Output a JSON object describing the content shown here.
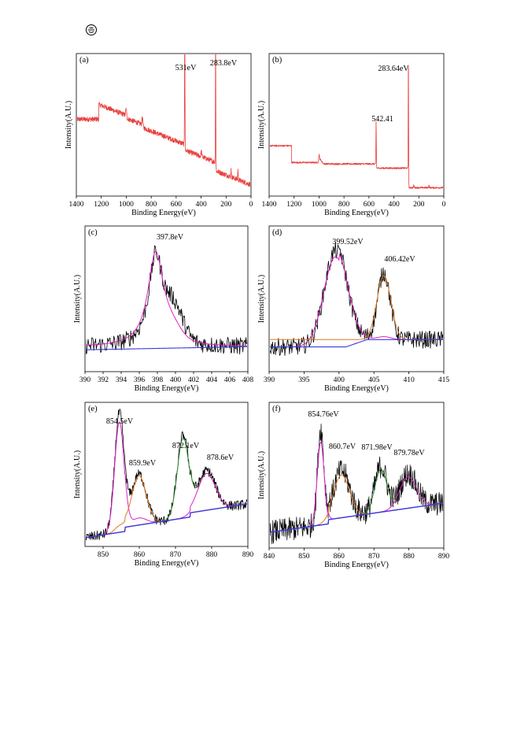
{
  "header": {
    "logo_icon": "circled-logo-icon"
  },
  "colors": {
    "raw_signal": "#000000",
    "survey_signal": "#e8403e",
    "fit_magenta": "#e020c8",
    "fit_orange": "#e07820",
    "fit_green": "#2a8a2a",
    "background_blue": "#3a3ad8"
  },
  "chart_data": [
    {
      "panel": "(a)",
      "type": "line",
      "xlabel": "Binding Energy(eV)",
      "ylabel": "Intensity(A.U.)",
      "xlim": [
        1400,
        0
      ],
      "x_reversed": true,
      "xticks": [
        1400,
        1200,
        1000,
        800,
        600,
        400,
        200,
        0
      ],
      "series": [
        {
          "style": "survey"
        }
      ],
      "peaks": [
        {
          "x": 531,
          "label": "531eV"
        },
        {
          "x": 283.8,
          "label": "283.8eV"
        }
      ],
      "step_edges": [
        1220,
        1000,
        870,
        531,
        283.8
      ]
    },
    {
      "panel": "(b)",
      "type": "line",
      "xlabel": "Binding Energy(eV)",
      "ylabel": "Intensity(A.U.)",
      "xlim": [
        1400,
        0
      ],
      "x_reversed": true,
      "xticks": [
        1400,
        1200,
        1000,
        800,
        600,
        400,
        200,
        0
      ],
      "series": [
        {
          "style": "survey"
        }
      ],
      "peaks": [
        {
          "x": 542.41,
          "label": "542.41"
        },
        {
          "x": 283.64,
          "label": "283.64eV"
        }
      ],
      "step_edges": [
        1220,
        1000,
        542.41,
        283.64
      ]
    },
    {
      "panel": "(c)",
      "type": "line",
      "xlabel": "Binding Energy(eV)",
      "ylabel": "Intensity(A.U.)",
      "xlim": [
        390,
        408
      ],
      "xticks": [
        390,
        392,
        394,
        396,
        398,
        400,
        402,
        404,
        406,
        408
      ],
      "series": [
        {
          "style": "raw"
        },
        {
          "style": "fit"
        },
        {
          "style": "background"
        }
      ],
      "peaks": [
        {
          "x": 397.8,
          "label": "397.8eV"
        }
      ]
    },
    {
      "panel": "(d)",
      "type": "line",
      "xlabel": "Binding Energy(eV)",
      "ylabel": "Intensity(A.U.)",
      "xlim": [
        390,
        415
      ],
      "xticks": [
        390,
        395,
        400,
        405,
        410,
        415
      ],
      "series": [
        {
          "style": "raw"
        },
        {
          "style": "fit"
        },
        {
          "style": "fit"
        },
        {
          "style": "background"
        }
      ],
      "peaks": [
        {
          "x": 399.52,
          "label": "399.52eV"
        },
        {
          "x": 406.42,
          "label": "406.42eV"
        }
      ]
    },
    {
      "panel": "(e)",
      "type": "line",
      "xlabel": "Binding Energy(eV)",
      "ylabel": "Intensity(A.U.)",
      "xlim": [
        845,
        890
      ],
      "xticks": [
        850,
        860,
        870,
        880,
        890
      ],
      "series": [
        {
          "style": "raw"
        },
        {
          "style": "fit"
        },
        {
          "style": "fit"
        },
        {
          "style": "fit"
        },
        {
          "style": "fit"
        },
        {
          "style": "background"
        }
      ],
      "peaks": [
        {
          "x": 854.5,
          "label": "854.5eV"
        },
        {
          "x": 859.9,
          "label": "859.9eV"
        },
        {
          "x": 872.1,
          "label": "872.1eV"
        },
        {
          "x": 878.6,
          "label": "878.6eV"
        }
      ]
    },
    {
      "panel": "(f)",
      "type": "line",
      "xlabel": "Binding Energy(eV)",
      "ylabel": "Intensity(A.U.)",
      "xlim": [
        840,
        890
      ],
      "xticks": [
        840,
        850,
        860,
        870,
        880,
        890
      ],
      "series": [
        {
          "style": "raw"
        },
        {
          "style": "fit"
        },
        {
          "style": "fit"
        },
        {
          "style": "fit"
        },
        {
          "style": "fit"
        },
        {
          "style": "background"
        }
      ],
      "peaks": [
        {
          "x": 854.76,
          "label": "854.76eV"
        },
        {
          "x": 860.7,
          "label": "860.7eV"
        },
        {
          "x": 871.98,
          "label": "871.98eV"
        },
        {
          "x": 879.78,
          "label": "879.78eV"
        }
      ]
    }
  ]
}
